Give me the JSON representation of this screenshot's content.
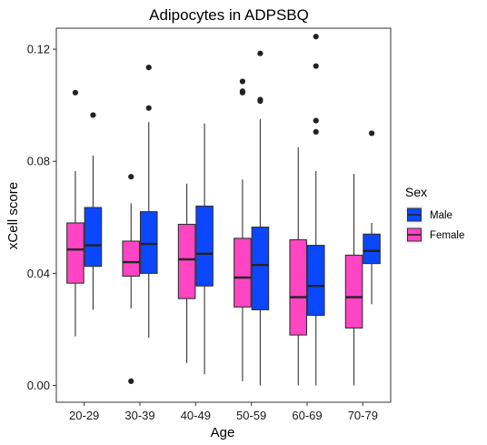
{
  "chart_data": {
    "type": "boxplot",
    "title": "Adipocytes in ADPSBQ",
    "xlabel": "Age",
    "ylabel": "xCell score",
    "categories": [
      "20-29",
      "30-39",
      "40-49",
      "50-59",
      "60-69",
      "70-79"
    ],
    "ylim": [
      -0.006,
      0.1275
    ],
    "yticks": [
      0.0,
      0.04,
      0.08,
      0.12
    ],
    "ytick_labels": [
      "0.00",
      "0.04",
      "0.08",
      "0.12"
    ],
    "grid": false,
    "legend": {
      "title": "Sex",
      "position": "right",
      "entries": [
        {
          "label": "Male",
          "color": "#0a47ff"
        },
        {
          "label": "Female",
          "color": "#ff44c4"
        }
      ]
    },
    "series": [
      {
        "name": "Female",
        "color": "#ff44c4",
        "boxes": [
          {
            "whislo": 0.0175,
            "q1": 0.0365,
            "med": 0.0485,
            "q3": 0.058,
            "whishi": 0.0765,
            "outliers": [
              0.1045
            ]
          },
          {
            "whislo": 0.0275,
            "q1": 0.039,
            "med": 0.044,
            "q3": 0.0515,
            "whishi": 0.065,
            "outliers": [
              0.0745,
              0.0015
            ]
          },
          {
            "whislo": 0.008,
            "q1": 0.031,
            "med": 0.045,
            "q3": 0.0575,
            "whishi": 0.072,
            "outliers": []
          },
          {
            "whislo": 0.0015,
            "q1": 0.028,
            "med": 0.0385,
            "q3": 0.0525,
            "whishi": 0.0735,
            "outliers": [
              0.1085,
              0.105,
              0.1045
            ]
          },
          {
            "whislo": 0.0,
            "q1": 0.018,
            "med": 0.0315,
            "q3": 0.052,
            "whishi": 0.085,
            "outliers": []
          },
          {
            "whislo": 0.0,
            "q1": 0.0205,
            "med": 0.0315,
            "q3": 0.0465,
            "whishi": 0.0755,
            "outliers": []
          }
        ]
      },
      {
        "name": "Male",
        "color": "#0a47ff",
        "boxes": [
          {
            "whislo": 0.027,
            "q1": 0.0425,
            "med": 0.05,
            "q3": 0.0635,
            "whishi": 0.082,
            "outliers": [
              0.0965
            ]
          },
          {
            "whislo": 0.017,
            "q1": 0.04,
            "med": 0.0505,
            "q3": 0.062,
            "whishi": 0.094,
            "outliers": [
              0.1135,
              0.099
            ]
          },
          {
            "whislo": 0.004,
            "q1": 0.0355,
            "med": 0.047,
            "q3": 0.064,
            "whishi": 0.0935,
            "outliers": []
          },
          {
            "whislo": 0.0,
            "q1": 0.027,
            "med": 0.043,
            "q3": 0.0565,
            "whishi": 0.095,
            "outliers": [
              0.1185,
              0.102,
              0.1015
            ]
          },
          {
            "whislo": 0.0,
            "q1": 0.025,
            "med": 0.0355,
            "q3": 0.05,
            "whishi": 0.0765,
            "outliers": [
              0.1245,
              0.114,
              0.0945,
              0.0905
            ]
          },
          {
            "whislo": 0.029,
            "q1": 0.0435,
            "med": 0.048,
            "q3": 0.054,
            "whishi": 0.058,
            "outliers": [
              0.09
            ]
          }
        ]
      }
    ]
  }
}
